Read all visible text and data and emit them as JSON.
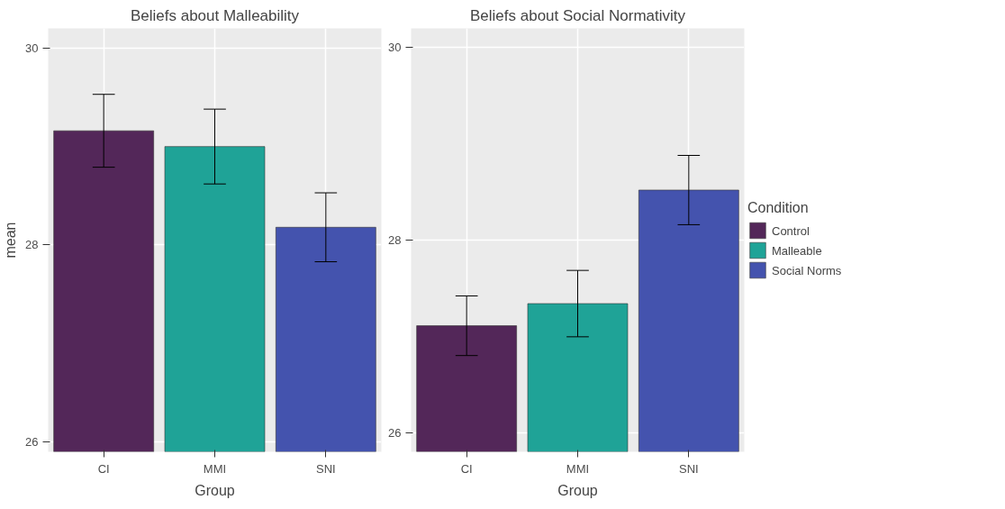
{
  "chart_data": [
    {
      "type": "bar",
      "title": "Beliefs about Malleability",
      "xlabel": "Group",
      "ylabel": "mean",
      "categories": [
        "CI",
        "MMI",
        "SNI"
      ],
      "ylim": [
        25.9,
        30.2
      ],
      "yticks": [
        26,
        28,
        30
      ],
      "grid": true,
      "series": [
        {
          "color": "#532759",
          "values": [
            29.16,
            null,
            null
          ],
          "errors": [
            0.37,
            null,
            null
          ]
        },
        {
          "color": "#1fa397",
          "values": [
            null,
            29.0,
            null
          ],
          "errors": [
            null,
            0.38,
            null
          ]
        },
        {
          "color": "#4453ae",
          "values": [
            null,
            null,
            28.18
          ],
          "errors": [
            null,
            null,
            0.35
          ]
        }
      ]
    },
    {
      "type": "bar",
      "title": "Beliefs about Social Normativity",
      "xlabel": "Group",
      "legend_title": "Condition",
      "categories": [
        "CI",
        "MMI",
        "SNI"
      ],
      "ylim": [
        25.8,
        30.2
      ],
      "yticks": [
        26,
        28,
        30
      ],
      "grid": true,
      "legend": "right",
      "series": [
        {
          "name": "Control",
          "color": "#532759",
          "values": [
            27.11,
            null,
            null
          ],
          "errors": [
            0.31,
            null,
            null
          ]
        },
        {
          "name": "Malleable",
          "color": "#1fa397",
          "values": [
            null,
            27.34,
            null
          ],
          "errors": [
            null,
            0.345,
            null
          ]
        },
        {
          "name": "Social Norms",
          "color": "#4453ae",
          "values": [
            null,
            null,
            28.52
          ],
          "errors": [
            null,
            null,
            0.36
          ]
        }
      ]
    }
  ]
}
